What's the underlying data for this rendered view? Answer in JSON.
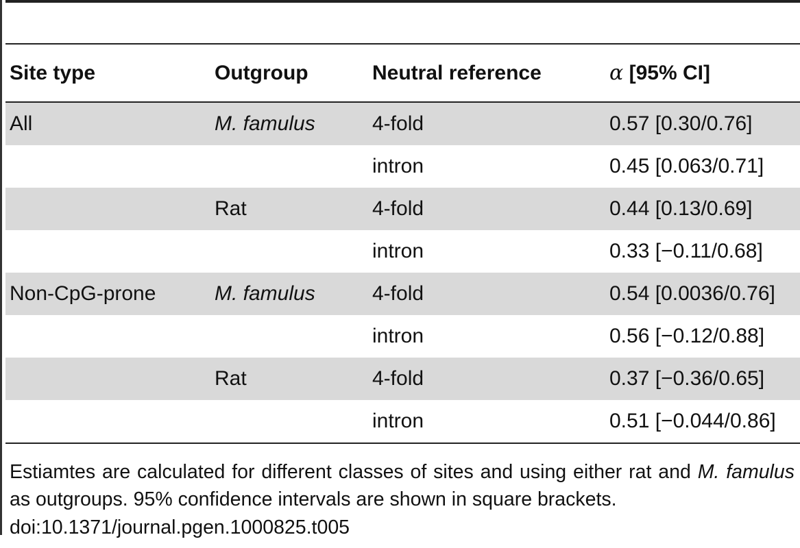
{
  "table": {
    "headers": {
      "site_type": "Site type",
      "outgroup": "Outgroup",
      "neutral_reference": "Neutral reference",
      "alpha_symbol": "α",
      "alpha_ci": "[95% CI]"
    },
    "rows": [
      {
        "site_type": "All",
        "outgroup": "M. famulus",
        "neutral_reference": "4-fold",
        "alpha": "0.57",
        "ci": "[0.30/0.76]"
      },
      {
        "site_type": "",
        "outgroup": "",
        "neutral_reference": "intron",
        "alpha": "0.45",
        "ci": "[0.063/0.71]"
      },
      {
        "site_type": "",
        "outgroup": "Rat",
        "neutral_reference": "4-fold",
        "alpha": "0.44",
        "ci": "[0.13/0.69]"
      },
      {
        "site_type": "",
        "outgroup": "",
        "neutral_reference": "intron",
        "alpha": "0.33",
        "ci": "[−0.11/0.68]"
      },
      {
        "site_type": "Non-CpG-prone",
        "outgroup": "M. famulus",
        "neutral_reference": "4-fold",
        "alpha": "0.54",
        "ci": "[0.0036/0.76]"
      },
      {
        "site_type": "",
        "outgroup": "",
        "neutral_reference": "intron",
        "alpha": "0.56",
        "ci": "[−0.12/0.88]"
      },
      {
        "site_type": "",
        "outgroup": "Rat",
        "neutral_reference": "4-fold",
        "alpha": "0.37",
        "ci": "[−0.36/0.65]"
      },
      {
        "site_type": "",
        "outgroup": "",
        "neutral_reference": "intron",
        "alpha": "0.51",
        "ci": "[−0.044/0.86]"
      }
    ]
  },
  "footnote": {
    "part1": "Estiamtes are calculated for different classes of sites and using either rat and ",
    "species": "M. famulus",
    "part2": " as outgroups. 95% confidence intervals are shown in square brackets.",
    "doi": "doi:10.1371/journal.pgen.1000825.t005"
  },
  "colors": {
    "row_shade": "#d9d9d9",
    "rule": "#222222"
  }
}
